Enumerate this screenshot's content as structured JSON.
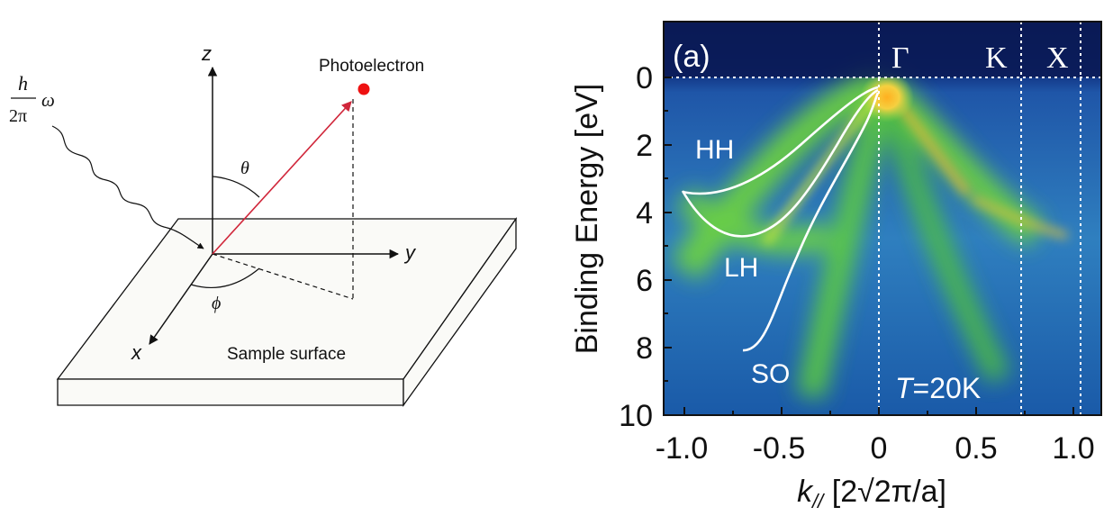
{
  "diagram": {
    "energy_numerator": "h",
    "energy_denominator": "2π",
    "energy_symbol": "ω",
    "axis_z": "z",
    "axis_y": "y",
    "axis_x": "x",
    "angle_theta": "θ",
    "angle_phi": "ϕ",
    "photoelectron_label": "Photoelectron",
    "surface_label": "Sample surface",
    "colors": {
      "emission_arrow": "#d0263a",
      "electron_dot": "#ee1111",
      "lines": "#111111"
    }
  },
  "arpes": {
    "panel_label": "(a)",
    "gamma_label": "Γ",
    "k_label": "K",
    "x_label": "X",
    "temperature_symbol": "T",
    "temperature_value": "=20K",
    "ylabel": "Binding Energy [eV]",
    "xlabel_k": "k",
    "xlabel_sub": "//",
    "xlabel_units": " [2√2π/a]",
    "yticks": [
      "0",
      "2",
      "4",
      "6",
      "8",
      "10"
    ],
    "xticks": [
      "-1.0",
      "-0.5",
      "0",
      "0.5",
      "1.0"
    ],
    "bands": [
      "HH",
      "LH",
      "SO"
    ],
    "colors": {
      "background": "#1e5ab4",
      "band_glow": "#7fe03a",
      "band_peak": "#ffb020",
      "fit_curves": "#ffffff"
    }
  }
}
